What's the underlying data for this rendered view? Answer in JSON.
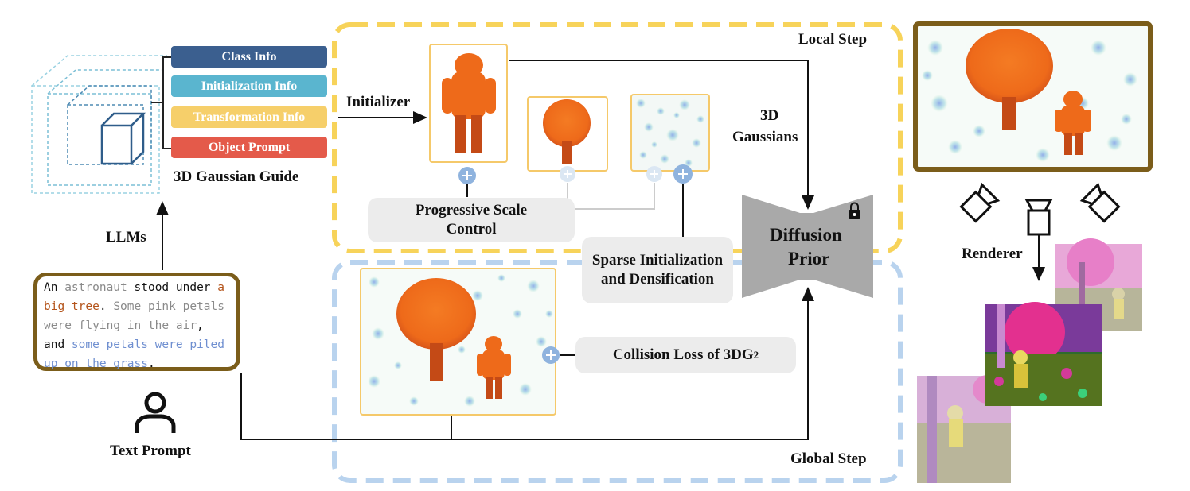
{
  "guide": {
    "title": "3D Gaussian Guide",
    "items": [
      {
        "label": "Class Info",
        "color": "#3b5f8f"
      },
      {
        "label": "Initialization Info",
        "color": "#5ab5cf"
      },
      {
        "label": "Transformation Info",
        "color": "#f6cf6a"
      },
      {
        "label": "Object Prompt",
        "color": "#e45a4a"
      }
    ]
  },
  "labels": {
    "llms": "LLMs",
    "initializer": "Initializer",
    "gaussians_line1": "3D",
    "gaussians_line2": "Gaussians",
    "local_step": "Local Step",
    "global_step": "Global Step",
    "diffusion_line1": "Diffusion",
    "diffusion_line2": "Prior",
    "renderer": "Renderer",
    "text_prompt": "Text Prompt"
  },
  "boxes": {
    "progressive": "Progressive Scale Control",
    "sparse": "Sparse Initialization and Densification",
    "collision": "Collision Loss of 3DG",
    "collision_sup": "2"
  },
  "prompt": {
    "segments": [
      {
        "text": "An ",
        "style": "k"
      },
      {
        "text": "astronaut",
        "style": "g"
      },
      {
        "text": " stood under ",
        "style": "k"
      },
      {
        "text": "a big tree",
        "style": "o"
      },
      {
        "text": ". ",
        "style": "k"
      },
      {
        "text": "Some pink petals were flying in the air",
        "style": "g"
      },
      {
        "text": ", and ",
        "style": "k"
      },
      {
        "text": "some petals were piled up on the grass",
        "style": "b"
      },
      {
        "text": ".",
        "style": "k"
      }
    ]
  },
  "colors": {
    "local_border": "#f7d35a",
    "global_border": "#b9d3ee",
    "frame_brown": "#7b5d1a",
    "plus_blue": "#8fb3de",
    "orange_object": "#f07d22"
  }
}
